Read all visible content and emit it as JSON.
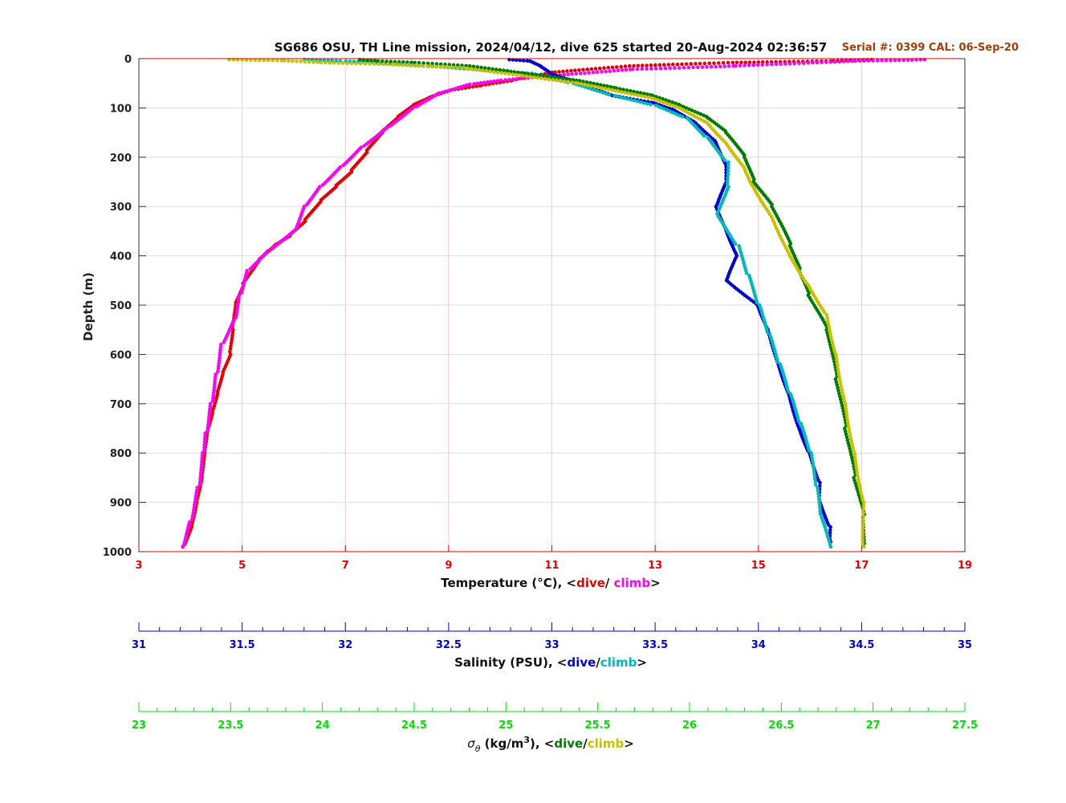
{
  "chart_data": {
    "type": "scatter",
    "title": "SG686 OSU, TH Line mission, 2024/04/12, dive 625 started 20-Aug-2024 02:36:57",
    "serial_label": "Serial #: 0399  CAL: 06-Sep-20",
    "ylabel": "Depth (m)",
    "ylim": [
      0,
      1000
    ],
    "yticks": [
      0,
      100,
      200,
      300,
      400,
      500,
      600,
      700,
      800,
      900,
      1000
    ],
    "grid": true,
    "colors": {
      "temp_dive": "#e00000",
      "temp_climb": "#ff00ff",
      "sal_dive": "#0000cc",
      "sal_climb": "#00b8b8",
      "sig_dive": "#007a00",
      "sig_climb": "#c8c000",
      "temp_axis": "#e00000",
      "sal_axis": "#0000cc",
      "sig_axis": "#00e000",
      "serial": "#a0400a"
    },
    "axes": {
      "temperature": {
        "label_prefix": "Temperature (°C), <",
        "dive": "dive",
        "separator": "/ ",
        "climb": "climb",
        "label_suffix": ">",
        "range": [
          3,
          19
        ],
        "ticks": [
          "3",
          "5",
          "7",
          "9",
          "11",
          "13",
          "15",
          "17",
          "19"
        ]
      },
      "salinity": {
        "label_prefix": "Salinity (PSU), <",
        "dive": "dive",
        "separator": "/",
        "climb": "climb",
        "label_suffix": ">",
        "range": [
          31,
          35
        ],
        "ticks": [
          "31",
          "31.5",
          "32",
          "32.5",
          "33",
          "33.5",
          "34",
          "34.5",
          "35"
        ]
      },
      "sigma": {
        "label_symbol": "σ",
        "label_sub": "θ",
        "label_mid": " (kg/m",
        "label_sup": "3",
        "label_after": "), <",
        "dive": "dive",
        "separator": "/",
        "climb": "climb",
        "label_suffix": ">",
        "range": [
          23,
          27.5
        ],
        "ticks": [
          "23",
          "23.5",
          "24",
          "24.5",
          "25",
          "25.5",
          "26",
          "26.5",
          "27",
          "27.5"
        ]
      }
    },
    "series": [
      {
        "name": "Temperature dive",
        "axis": "temperature",
        "color_key": "temp_dive",
        "points": [
          [
            17.2,
            2
          ],
          [
            16.4,
            5
          ],
          [
            14.5,
            8
          ],
          [
            12.5,
            15
          ],
          [
            11.0,
            28
          ],
          [
            10.2,
            45
          ],
          [
            9.6,
            55
          ],
          [
            9.0,
            65
          ],
          [
            8.6,
            80
          ],
          [
            8.3,
            95
          ],
          [
            8.0,
            120
          ],
          [
            7.7,
            150
          ],
          [
            7.4,
            190
          ],
          [
            7.1,
            230
          ],
          [
            6.8,
            260
          ],
          [
            6.5,
            290
          ],
          [
            6.2,
            330
          ],
          [
            5.9,
            360
          ],
          [
            5.6,
            380
          ],
          [
            5.3,
            410
          ],
          [
            5.0,
            460
          ],
          [
            4.85,
            500
          ],
          [
            4.8,
            550
          ],
          [
            4.75,
            600
          ],
          [
            4.6,
            640
          ],
          [
            4.5,
            680
          ],
          [
            4.4,
            720
          ],
          [
            4.3,
            760
          ],
          [
            4.25,
            800
          ],
          [
            4.2,
            850
          ],
          [
            4.1,
            900
          ],
          [
            4.0,
            950
          ],
          [
            3.85,
            990
          ]
        ]
      },
      {
        "name": "Temperature climb",
        "axis": "temperature",
        "color_key": "temp_climb",
        "points": [
          [
            18.2,
            2
          ],
          [
            16.8,
            5
          ],
          [
            14.5,
            15
          ],
          [
            12.5,
            22
          ],
          [
            11.3,
            32
          ],
          [
            10.6,
            38
          ],
          [
            10.0,
            44
          ],
          [
            9.4,
            52
          ],
          [
            8.8,
            70
          ],
          [
            8.3,
            100
          ],
          [
            7.8,
            140
          ],
          [
            7.3,
            180
          ],
          [
            6.9,
            220
          ],
          [
            6.5,
            260
          ],
          [
            6.2,
            300
          ],
          [
            6.0,
            350
          ],
          [
            5.5,
            390
          ],
          [
            5.1,
            430
          ],
          [
            4.95,
            480
          ],
          [
            4.85,
            530
          ],
          [
            4.6,
            580
          ],
          [
            4.5,
            640
          ],
          [
            4.4,
            700
          ],
          [
            4.3,
            760
          ],
          [
            4.25,
            800
          ],
          [
            4.15,
            870
          ],
          [
            4.0,
            940
          ],
          [
            3.85,
            990
          ]
        ]
      },
      {
        "name": "Salinity dive",
        "axis": "salinity",
        "color_key": "sal_dive",
        "points": [
          [
            32.8,
            2
          ],
          [
            32.9,
            5
          ],
          [
            32.95,
            15
          ],
          [
            33.0,
            30
          ],
          [
            33.1,
            45
          ],
          [
            33.2,
            60
          ],
          [
            33.3,
            75
          ],
          [
            33.5,
            90
          ],
          [
            33.6,
            105
          ],
          [
            33.7,
            130
          ],
          [
            33.8,
            170
          ],
          [
            33.85,
            220
          ],
          [
            33.85,
            250
          ],
          [
            33.8,
            300
          ],
          [
            33.85,
            350
          ],
          [
            33.9,
            400
          ],
          [
            33.85,
            450
          ],
          [
            34.0,
            500
          ],
          [
            34.05,
            550
          ],
          [
            34.1,
            620
          ],
          [
            34.15,
            680
          ],
          [
            34.2,
            750
          ],
          [
            34.25,
            800
          ],
          [
            34.3,
            860
          ],
          [
            34.3,
            900
          ],
          [
            34.35,
            950
          ],
          [
            34.35,
            980
          ]
        ]
      },
      {
        "name": "Salinity climb",
        "axis": "salinity",
        "color_key": "sal_climb",
        "points": [
          [
            31.8,
            2
          ],
          [
            32.0,
            5
          ],
          [
            32.4,
            15
          ],
          [
            32.9,
            30
          ],
          [
            33.1,
            50
          ],
          [
            33.3,
            75
          ],
          [
            33.5,
            95
          ],
          [
            33.65,
            120
          ],
          [
            33.75,
            160
          ],
          [
            33.85,
            210
          ],
          [
            33.85,
            260
          ],
          [
            33.8,
            320
          ],
          [
            33.9,
            380
          ],
          [
            33.95,
            440
          ],
          [
            34.0,
            500
          ],
          [
            34.05,
            560
          ],
          [
            34.1,
            620
          ],
          [
            34.15,
            680
          ],
          [
            34.2,
            740
          ],
          [
            34.25,
            800
          ],
          [
            34.28,
            870
          ],
          [
            34.3,
            930
          ],
          [
            34.35,
            990
          ]
        ]
      },
      {
        "name": "Sigma-theta dive",
        "axis": "sigma",
        "color_key": "sig_dive",
        "points": [
          [
            24.2,
            2
          ],
          [
            24.3,
            5
          ],
          [
            24.5,
            8
          ],
          [
            24.8,
            15
          ],
          [
            25.1,
            30
          ],
          [
            25.4,
            45
          ],
          [
            25.6,
            60
          ],
          [
            25.8,
            75
          ],
          [
            25.95,
            95
          ],
          [
            26.1,
            120
          ],
          [
            26.2,
            150
          ],
          [
            26.3,
            200
          ],
          [
            26.35,
            250
          ],
          [
            26.45,
            300
          ],
          [
            26.55,
            380
          ],
          [
            26.6,
            430
          ],
          [
            26.65,
            480
          ],
          [
            26.75,
            550
          ],
          [
            26.8,
            650
          ],
          [
            26.85,
            750
          ],
          [
            26.9,
            850
          ],
          [
            26.95,
            930
          ],
          [
            26.95,
            990
          ]
        ]
      },
      {
        "name": "Sigma-theta climb",
        "axis": "sigma",
        "color_key": "sig_climb",
        "points": [
          [
            23.5,
            2
          ],
          [
            23.8,
            4
          ],
          [
            24.0,
            8
          ],
          [
            24.4,
            12
          ],
          [
            24.8,
            20
          ],
          [
            25.1,
            35
          ],
          [
            25.4,
            50
          ],
          [
            25.6,
            65
          ],
          [
            25.8,
            80
          ],
          [
            25.95,
            100
          ],
          [
            26.1,
            130
          ],
          [
            26.2,
            170
          ],
          [
            26.3,
            220
          ],
          [
            26.35,
            260
          ],
          [
            26.45,
            320
          ],
          [
            26.55,
            400
          ],
          [
            26.65,
            460
          ],
          [
            26.75,
            520
          ],
          [
            26.8,
            600
          ],
          [
            26.85,
            700
          ],
          [
            26.9,
            800
          ],
          [
            26.95,
            900
          ],
          [
            26.95,
            990
          ]
        ]
      }
    ]
  }
}
